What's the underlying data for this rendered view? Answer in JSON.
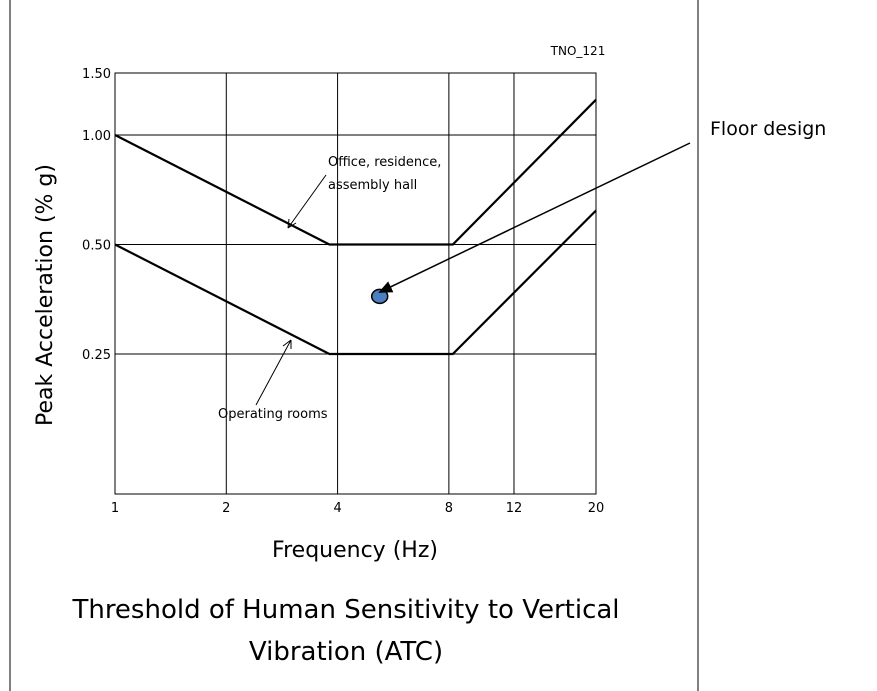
{
  "figure_id": "TNO_121",
  "callout_label": "Floor design",
  "chart_data": {
    "type": "line",
    "title": "Threshold of Human Sensitivity to Vertical Vibration (ATC)",
    "title_lines": [
      "Threshold of Human Sensitivity to Vertical",
      "Vibration (ATC)"
    ],
    "xlabel": "Frequency (Hz)",
    "ylabel": "Peak Acceleration (% g)",
    "x_scale": "log",
    "y_scale": "log",
    "xlim": [
      1,
      20
    ],
    "ylim": [
      0.1,
      1.5
    ],
    "x_ticks": [
      1,
      2,
      4,
      8,
      12,
      20
    ],
    "x_tick_labels": [
      "1",
      "2",
      "4",
      "8",
      "12",
      "20"
    ],
    "y_ticks": [
      0.25,
      0.5,
      1.0,
      1.5
    ],
    "y_tick_labels": [
      "0.25",
      "0.50",
      "1.00",
      "1.50"
    ],
    "grid": true,
    "series": [
      {
        "name": "Office, residence, assembly hall",
        "x": [
          1,
          3.8,
          8.2,
          20
        ],
        "y": [
          1.0,
          0.5,
          0.5,
          1.25
        ]
      },
      {
        "name": "Operating rooms",
        "x": [
          1,
          3.8,
          8.2,
          20
        ],
        "y": [
          0.5,
          0.25,
          0.25,
          0.62
        ]
      }
    ],
    "points": [
      {
        "name": "Floor design",
        "x": 5.2,
        "y": 0.36,
        "color": "#4a7fc1"
      }
    ]
  }
}
